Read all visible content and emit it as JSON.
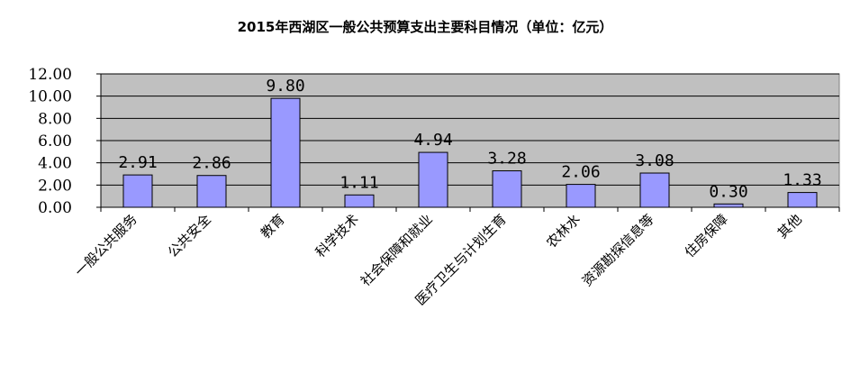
{
  "chart_data": {
    "type": "bar",
    "title": "2015年西湖区一般公共预算支出主要科目情况（单位：亿元）",
    "categories": [
      "一般公共服务",
      "公共安全",
      "教育",
      "科学技术",
      "社会保障和就业",
      "医疗卫生与计划生育",
      "农林水",
      "资源勘探信息等",
      "住房保障",
      "其他"
    ],
    "values": [
      2.91,
      2.86,
      9.8,
      1.11,
      4.94,
      3.28,
      2.06,
      3.08,
      0.3,
      1.33
    ],
    "data_labels": [
      "2.91",
      "2.86",
      "9.80",
      "1.11",
      "4.94",
      "3.28",
      "2.06",
      "3.08",
      "0.30",
      "1.33"
    ],
    "y_ticks": [
      "0.00",
      "2.00",
      "4.00",
      "6.00",
      "8.00",
      "10.00",
      "12.00"
    ],
    "ylim": [
      0,
      12
    ],
    "xlabel": "",
    "ylabel": "",
    "grid": true,
    "legend": "none",
    "colors": {
      "bar_fill": "#9999ff",
      "bar_stroke": "#000000",
      "plot_background": "#c0c0c0",
      "gridline": "#000000"
    }
  }
}
